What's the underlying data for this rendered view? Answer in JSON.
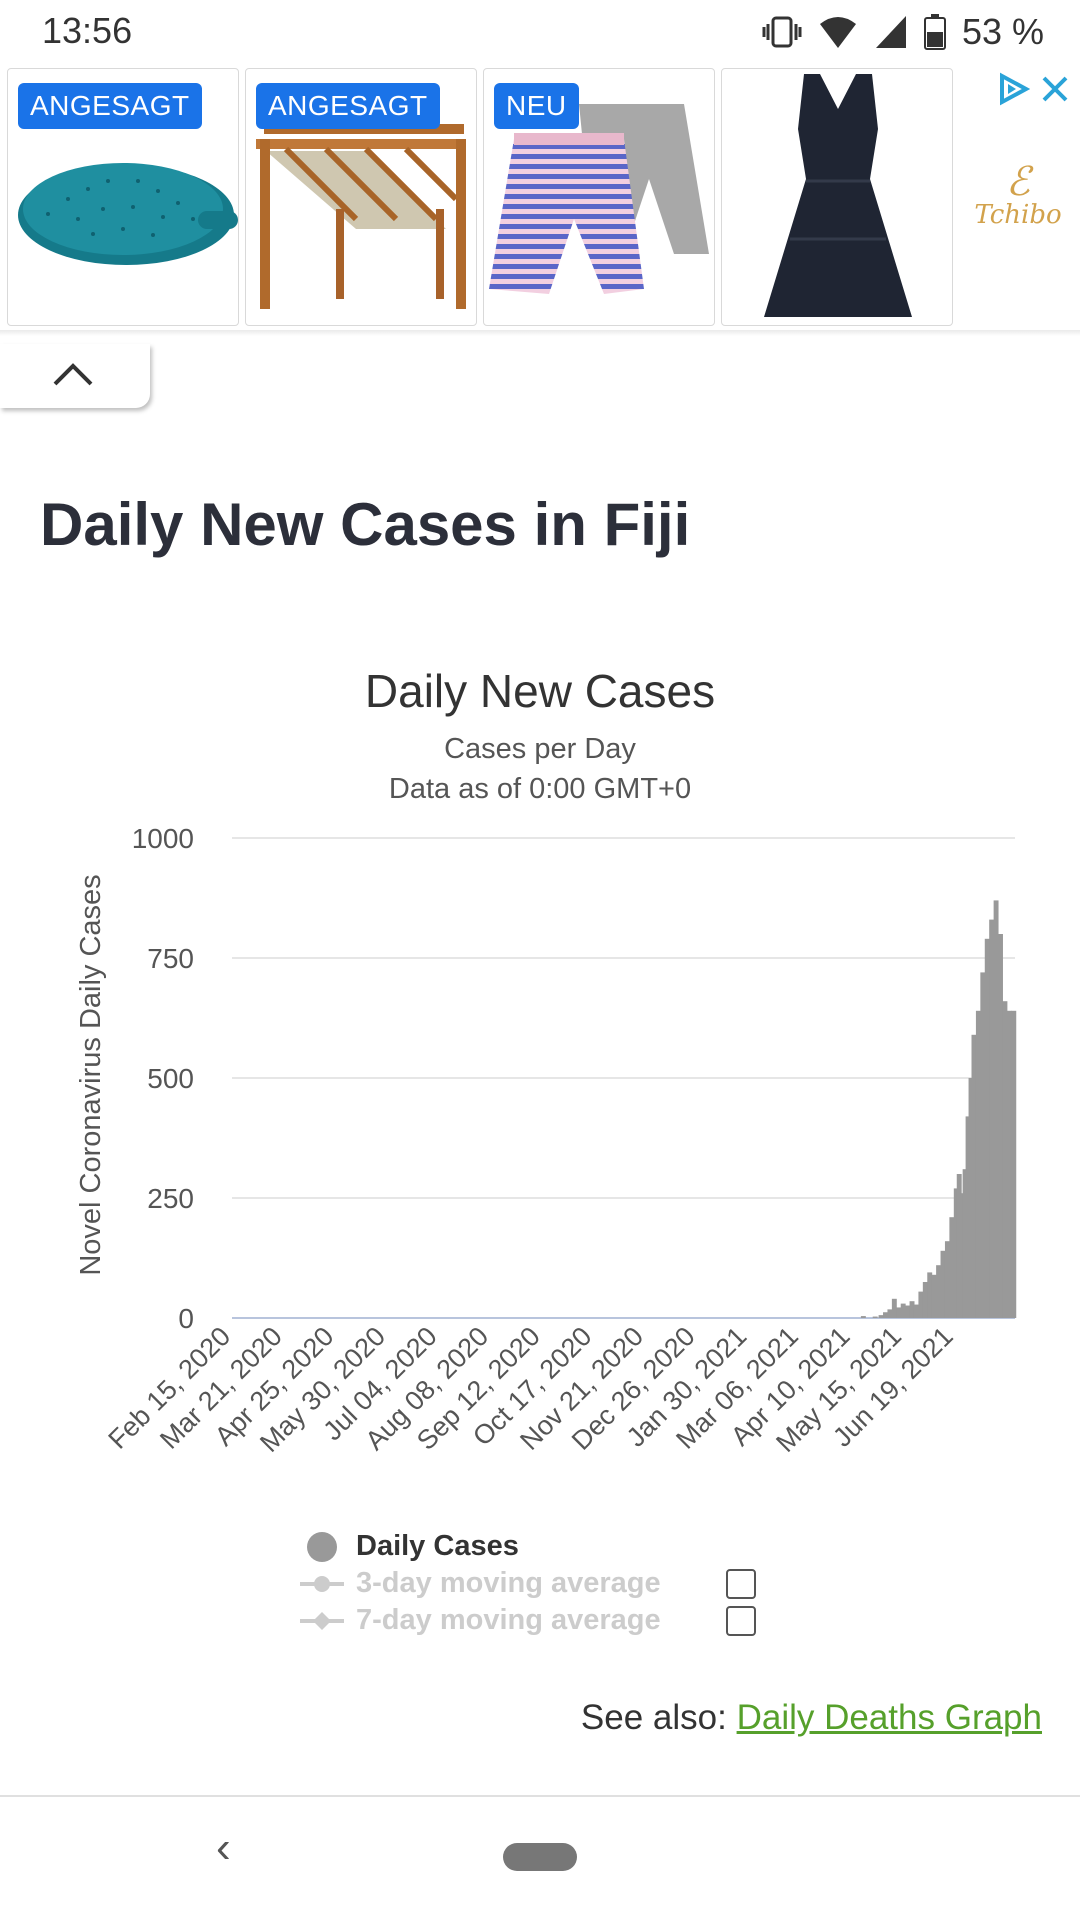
{
  "status_bar": {
    "time": "13:56",
    "battery": "53 %"
  },
  "ad": {
    "cards": [
      {
        "badge": "ANGESAGT",
        "image_icon": "splatter-guard-icon"
      },
      {
        "badge": "ANGESAGT",
        "image_icon": "pergola-icon"
      },
      {
        "badge": "NEU",
        "image_icon": "shorts-icon"
      },
      {
        "badge": "",
        "image_icon": "dress-icon"
      }
    ],
    "brand": "Tchibo",
    "choices_icon": "ad-choices-icon",
    "close_icon": "close-icon"
  },
  "page": {
    "title": "Daily New Cases in Fiji"
  },
  "chart_data": {
    "type": "bar",
    "title": "Daily New Cases",
    "subtitle_lines": [
      "Cases per Day",
      "Data as of 0:00 GMT+0"
    ],
    "ylabel": "Novel Coronavirus Daily Cases",
    "xlabel": "",
    "ylim": [
      0,
      1000
    ],
    "y_ticks": [
      0,
      250,
      500,
      750,
      1000
    ],
    "x_start": "2020-02-15",
    "x_end": "2021-07-30",
    "x_tick_labels": [
      "Feb 15, 2020",
      "Mar 21, 2020",
      "Apr 25, 2020",
      "May 30, 2020",
      "Jul 04, 2020",
      "Aug 08, 2020",
      "Sep 12, 2020",
      "Oct 17, 2020",
      "Nov 21, 2020",
      "Dec 26, 2020",
      "Jan 30, 2021",
      "Mar 06, 2021",
      "Apr 10, 2021",
      "May 15, 2021",
      "Jun 19, 2021"
    ],
    "series": [
      {
        "name": "Daily Cases",
        "color": "#999999",
        "points": [
          [
            "2021-04-18",
            4
          ],
          [
            "2021-04-26",
            3
          ],
          [
            "2021-04-30",
            6
          ],
          [
            "2021-05-03",
            12
          ],
          [
            "2021-05-06",
            18
          ],
          [
            "2021-05-09",
            40
          ],
          [
            "2021-05-12",
            22
          ],
          [
            "2021-05-15",
            30
          ],
          [
            "2021-05-18",
            26
          ],
          [
            "2021-05-21",
            35
          ],
          [
            "2021-05-24",
            28
          ],
          [
            "2021-05-27",
            55
          ],
          [
            "2021-05-30",
            75
          ],
          [
            "2021-06-02",
            95
          ],
          [
            "2021-06-05",
            90
          ],
          [
            "2021-06-08",
            110
          ],
          [
            "2021-06-11",
            140
          ],
          [
            "2021-06-14",
            160
          ],
          [
            "2021-06-17",
            210
          ],
          [
            "2021-06-20",
            270
          ],
          [
            "2021-06-22",
            300
          ],
          [
            "2021-06-24",
            260
          ],
          [
            "2021-06-26",
            310
          ],
          [
            "2021-06-28",
            420
          ],
          [
            "2021-06-30",
            500
          ],
          [
            "2021-07-02",
            590
          ],
          [
            "2021-07-05",
            640
          ],
          [
            "2021-07-08",
            720
          ],
          [
            "2021-07-11",
            790
          ],
          [
            "2021-07-14",
            830
          ],
          [
            "2021-07-17",
            870
          ],
          [
            "2021-07-20",
            800
          ],
          [
            "2021-07-23",
            660
          ],
          [
            "2021-07-26",
            640
          ],
          [
            "2021-07-29",
            640
          ]
        ]
      },
      {
        "name": "3-day moving average",
        "color": "#cccccc",
        "enabled": false
      },
      {
        "name": "7-day moving average",
        "color": "#cccccc",
        "enabled": false
      }
    ],
    "grid": true,
    "legend_position": "bottom"
  },
  "see_also": {
    "prefix": "See also: ",
    "link": "Daily Deaths Graph"
  },
  "nav": {
    "back_icon": "back-icon",
    "home_icon": "home-pill-icon"
  }
}
